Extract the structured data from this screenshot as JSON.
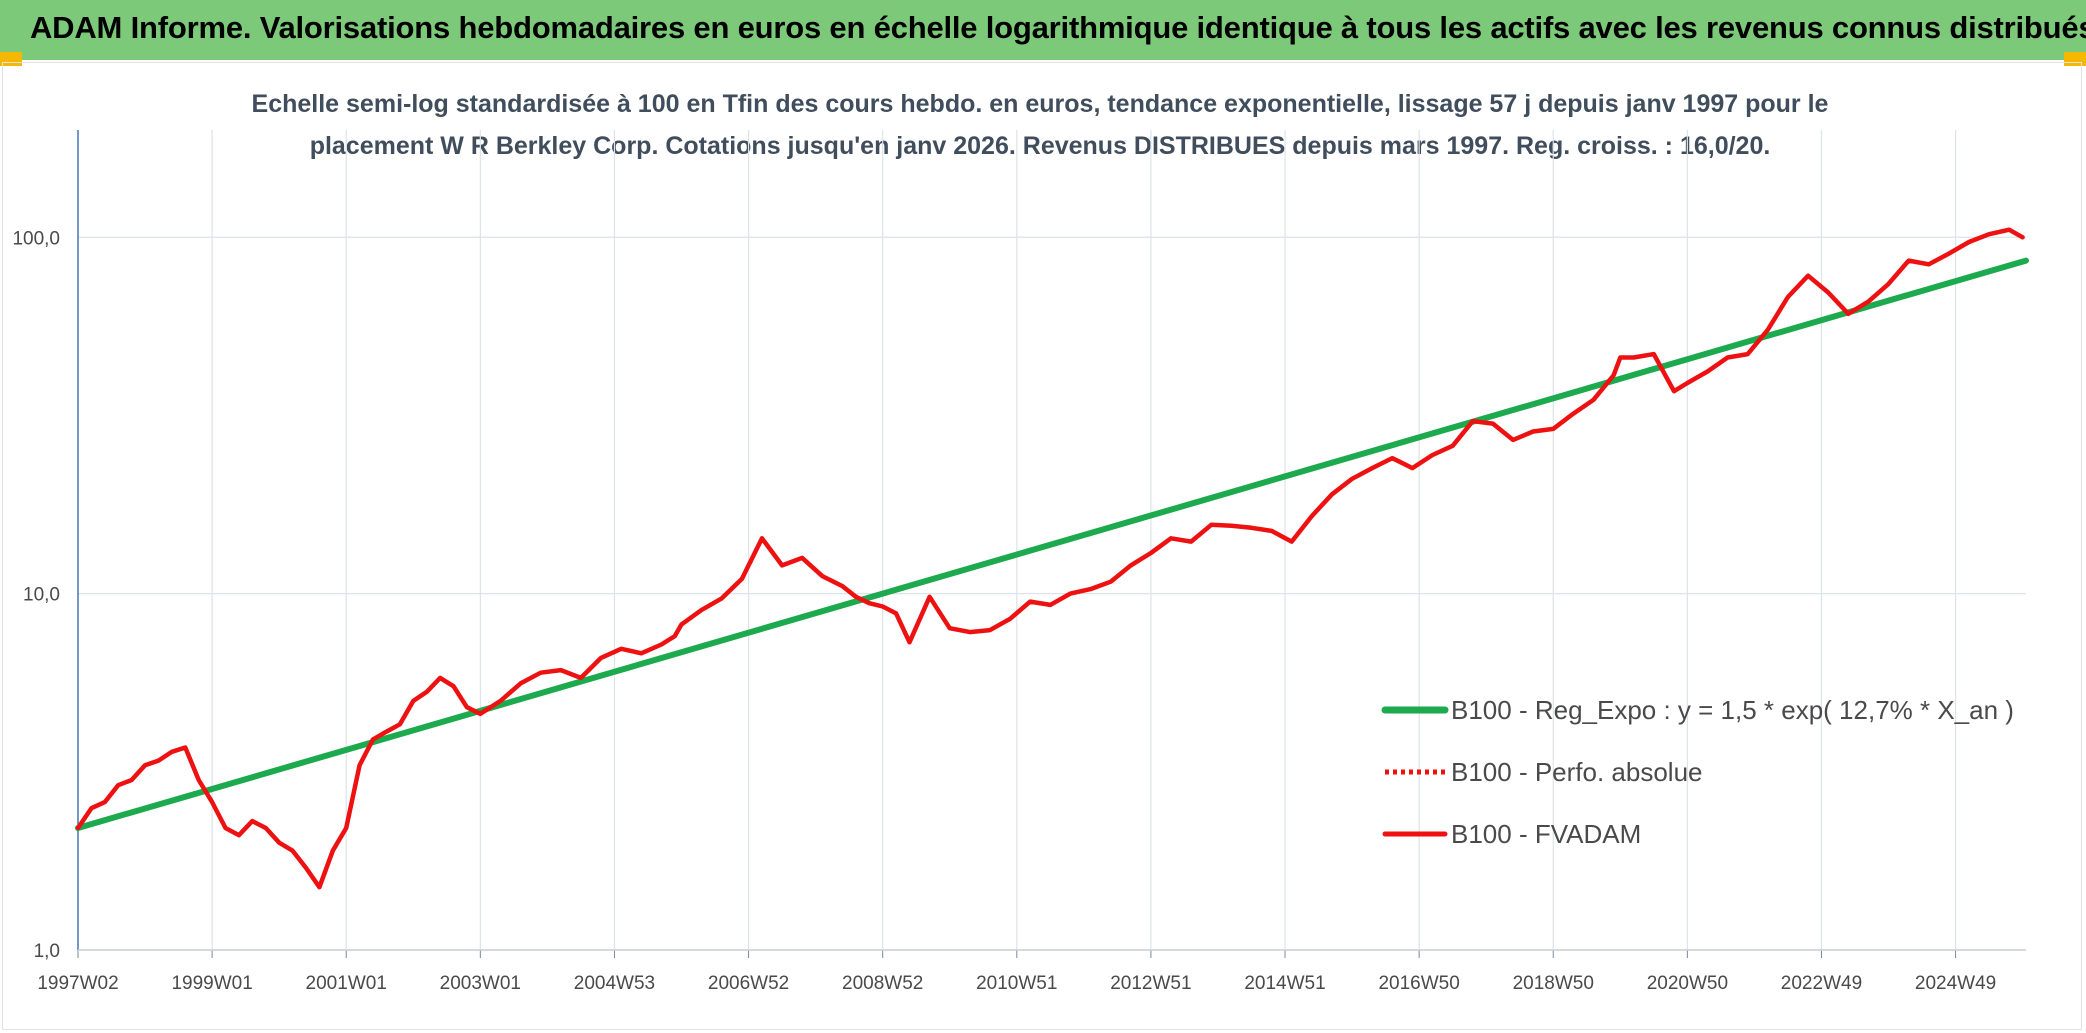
{
  "header": {
    "title": "ADAM Informe. Valorisations hebdomadaires en euros en échelle logarithmique identique à tous les actifs avec les revenus connus distribués"
  },
  "colors": {
    "banner": "#7dc97a",
    "trend": "#1daa4e",
    "fvadam": "#ee1111",
    "perfo": "#ee1111",
    "grid": "#dde3ea",
    "corner": "#f5b800"
  },
  "chart_data": {
    "type": "line",
    "title_line1": "Echelle semi-log standardisée à 100 en Tfin des cours hebdo. en euros, tendance exponentielle, lissage 57 j depuis janv 1997 pour le",
    "title_line2": "placement W R Berkley Corp. Cotations jusqu'en janv 2026. Revenus DISTRIBUES depuis mars 1997. Reg. croiss. : 16,0/20.",
    "y_scale": "log",
    "ylim": [
      1,
      200
    ],
    "y_ticks": [
      {
        "value": 1,
        "label": "1,0"
      },
      {
        "value": 10,
        "label": "10,0"
      },
      {
        "value": 100,
        "label": "100,0"
      }
    ],
    "xlim": [
      1997.0,
      2026.05
    ],
    "x_ticks": [
      {
        "value": 1997.0,
        "label": "1997W02"
      },
      {
        "value": 1999.0,
        "label": "1999W01"
      },
      {
        "value": 2001.0,
        "label": "2001W01"
      },
      {
        "value": 2003.0,
        "label": "2003W01"
      },
      {
        "value": 2005.0,
        "label": "2004W53"
      },
      {
        "value": 2007.0,
        "label": "2006W52"
      },
      {
        "value": 2009.0,
        "label": "2008W52"
      },
      {
        "value": 2011.0,
        "label": "2010W51"
      },
      {
        "value": 2013.0,
        "label": "2012W51"
      },
      {
        "value": 2015.0,
        "label": "2014W51"
      },
      {
        "value": 2017.0,
        "label": "2016W50"
      },
      {
        "value": 2019.0,
        "label": "2018W50"
      },
      {
        "value": 2021.0,
        "label": "2020W50"
      },
      {
        "value": 2023.0,
        "label": "2022W49"
      },
      {
        "value": 2025.0,
        "label": "2024W49"
      }
    ],
    "legend_position": "bottom-right",
    "grid": true,
    "series": [
      {
        "name": "B100 - Reg_Expo : y = 1,5 * exp( 12,7% *  X_an )",
        "style": "solid-thick",
        "x": [
          1997.0,
          2026.05
        ],
        "values": [
          2.2,
          86.0
        ]
      },
      {
        "name": "B100 - Perfo. absolue",
        "style": "dotted",
        "x": [],
        "values": []
      },
      {
        "name": "B100 - FVADAM",
        "style": "solid",
        "x": [
          1997.0,
          1997.2,
          1997.4,
          1997.6,
          1997.8,
          1998.0,
          1998.2,
          1998.4,
          1998.6,
          1998.8,
          1999.0,
          1999.2,
          1999.4,
          1999.6,
          1999.8,
          2000.0,
          2000.2,
          2000.4,
          2000.6,
          2000.8,
          2001.0,
          2001.2,
          2001.4,
          2001.6,
          2001.8,
          2002.0,
          2002.2,
          2002.4,
          2002.6,
          2002.8,
          2003.0,
          2003.3,
          2003.6,
          2003.9,
          2004.2,
          2004.5,
          2004.8,
          2005.1,
          2005.4,
          2005.7,
          2005.9,
          2006.0,
          2006.3,
          2006.6,
          2006.9,
          2007.2,
          2007.5,
          2007.8,
          2008.1,
          2008.4,
          2008.6,
          2008.8,
          2009.0,
          2009.2,
          2009.4,
          2009.7,
          2010.0,
          2010.3,
          2010.6,
          2010.9,
          2011.2,
          2011.5,
          2011.8,
          2012.1,
          2012.4,
          2012.7,
          2013.0,
          2013.3,
          2013.6,
          2013.9,
          2014.2,
          2014.5,
          2014.8,
          2015.1,
          2015.4,
          2015.7,
          2016.0,
          2016.3,
          2016.6,
          2016.9,
          2017.2,
          2017.5,
          2017.8,
          2018.1,
          2018.4,
          2018.7,
          2019.0,
          2019.3,
          2019.6,
          2019.9,
          2020.0,
          2020.2,
          2020.5,
          2020.8,
          2021.0,
          2021.3,
          2021.6,
          2021.9,
          2022.2,
          2022.5,
          2022.8,
          2023.1,
          2023.4,
          2023.7,
          2024.0,
          2024.3,
          2024.6,
          2024.9,
          2025.2,
          2025.5,
          2025.8,
          2026.0
        ],
        "values": [
          2.2,
          2.5,
          2.6,
          2.9,
          3.0,
          3.3,
          3.4,
          3.6,
          3.7,
          3.0,
          2.6,
          2.2,
          2.1,
          2.3,
          2.2,
          2.0,
          1.9,
          1.7,
          1.5,
          1.9,
          2.2,
          3.3,
          3.9,
          4.1,
          4.3,
          5.0,
          5.3,
          5.8,
          5.5,
          4.8,
          4.6,
          5.0,
          5.6,
          6.0,
          6.1,
          5.8,
          6.6,
          7.0,
          6.8,
          7.2,
          7.6,
          8.2,
          9.0,
          9.7,
          11.0,
          14.3,
          12.0,
          12.6,
          11.2,
          10.5,
          9.8,
          9.4,
          9.2,
          8.8,
          7.3,
          9.8,
          8.0,
          7.8,
          7.9,
          8.5,
          9.5,
          9.3,
          10.0,
          10.3,
          10.8,
          12.0,
          13.0,
          14.3,
          14.0,
          15.6,
          15.5,
          15.3,
          15.0,
          14.0,
          16.5,
          19.0,
          21.0,
          22.5,
          24.0,
          22.5,
          24.5,
          26.0,
          30.5,
          30.0,
          27.0,
          28.5,
          29.0,
          32.0,
          35.0,
          41.0,
          46.0,
          46.0,
          47.0,
          37.0,
          39.0,
          42.0,
          46.0,
          47.0,
          55.0,
          68.0,
          78.0,
          70.0,
          61.0,
          66.0,
          74.0,
          86.0,
          84.0,
          90.0,
          97.0,
          102.0,
          105.0,
          100.0
        ]
      }
    ]
  }
}
